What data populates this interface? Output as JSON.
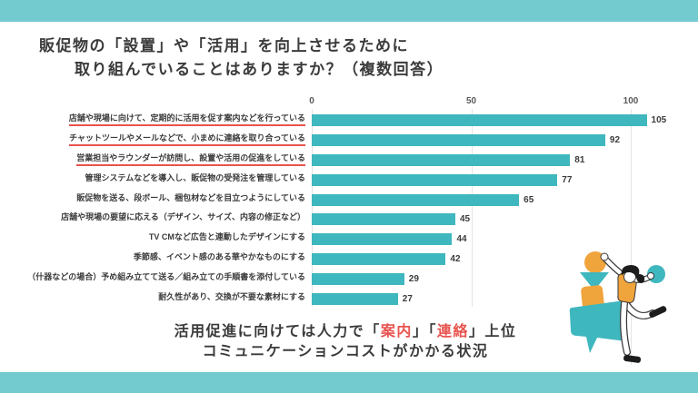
{
  "header": {
    "title_line1": "販促物の「設置」や「活用」を向上させるために",
    "title_line2": "取り組んでいることはありますか？（複数回答）"
  },
  "chart_data": {
    "type": "bar",
    "orientation": "horizontal",
    "categories": [
      "店舗や現場に向けて、定期的に活用を促す案内などを行っている",
      "チャットツールやメールなどで、小まめに連絡を取り合っている",
      "営業担当やラウンダーが訪問し、設置や活用の促進をしている",
      "管理システムなどを導入し、販促物の受発注を管理している",
      "販促物を送る、段ボール、梱包材などを目立つようにしている",
      "店舗や現場の要望に応える（デザイン、サイズ、内容の修正など）",
      "TV CMなど広告と連動したデザインにする",
      "季節感、イベント感のある華やかなものにする",
      "（什器などの場合）予め組み立てて送る／組み立ての手順書を添付している",
      "耐久性があり、交換が不要な素材にする"
    ],
    "values": [
      105,
      92,
      81,
      77,
      65,
      45,
      44,
      42,
      29,
      27
    ],
    "underlined_rows": [
      0,
      1,
      2
    ],
    "x_ticks": [
      0,
      50,
      100
    ],
    "xlim": [
      0,
      110
    ],
    "bar_color": "#3FB7BE",
    "grid": true,
    "legend": false,
    "title": "",
    "xlabel": "",
    "ylabel": ""
  },
  "footer": {
    "line1_segments": [
      {
        "text": "活用促進に向けては人力で「",
        "red": false
      },
      {
        "text": "案内",
        "red": true
      },
      {
        "text": "」「",
        "red": false
      },
      {
        "text": "連絡",
        "red": true
      },
      {
        "text": "」上位",
        "red": false
      }
    ],
    "line2": "コミュニケーションコストがかかる状況"
  },
  "colors": {
    "band_teal": "#73CACF",
    "bar_teal": "#3FB7BE",
    "accent_red": "#E8534E",
    "accent_orange": "#F0A43C",
    "text": "#3B3B3B",
    "gridline": "#E4E4E4"
  },
  "illustration": {
    "elements": [
      "orange-circle",
      "teal-triangle",
      "orange-block",
      "speech-bubble",
      "person",
      "teal-ball"
    ]
  }
}
